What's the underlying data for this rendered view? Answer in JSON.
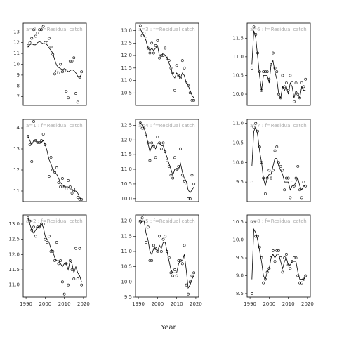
{
  "xlabel": "Year",
  "chart_data": [
    {
      "type": "scatter-line",
      "title": "a=0 : f=Residual catch",
      "x": [
        1991,
        1992,
        1993,
        1994,
        1995,
        1996,
        1997,
        1998,
        1999,
        2000,
        2001,
        2002,
        2003,
        2004,
        2005,
        2006,
        2007,
        2008,
        2009,
        2010,
        2011,
        2012,
        2013,
        2014,
        2015,
        2016,
        2017,
        2018,
        2019
      ],
      "xlim": [
        1988.5,
        2021.5
      ],
      "ylim": [
        6.2,
        13.8
      ],
      "yticks": [
        7,
        8,
        9,
        10,
        11,
        12,
        13
      ],
      "series": [
        {
          "marker": "circle",
          "values": [
            11.7,
            12.0,
            12.4,
            13.2,
            12.6,
            12.9,
            13.2,
            13.2,
            13.5,
            12.0,
            12.0,
            12.4,
            11.6,
            10.9,
            9.1,
            9.4,
            9.2,
            10.0,
            9.3,
            9.4,
            7.5,
            6.9,
            10.3,
            10.3,
            10.6,
            7.3,
            6.5,
            8.8,
            9.3
          ]
        },
        {
          "marker": "line",
          "values": [
            11.6,
            11.8,
            11.9,
            11.8,
            11.8,
            12.0,
            12.1,
            12.0,
            11.9,
            11.9,
            11.8,
            11.5,
            11.3,
            11.0,
            10.4,
            9.9,
            9.7,
            9.6,
            9.5,
            9.6,
            9.5,
            9.3,
            9.4,
            9.5,
            9.4,
            9.2,
            8.9,
            8.8,
            9.1
          ]
        }
      ]
    },
    {
      "type": "scatter-line",
      "title": "a=1 : f=Residual catch",
      "x": [
        1991,
        1992,
        1993,
        1994,
        1995,
        1996,
        1997,
        1998,
        1999,
        2000,
        2001,
        2002,
        2003,
        2004,
        2005,
        2006,
        2007,
        2008,
        2009,
        2010,
        2011,
        2012,
        2013,
        2014,
        2015,
        2016,
        2017,
        2018,
        2019
      ],
      "xlim": [
        1988.5,
        2021.5
      ],
      "ylim": [
        10.5,
        14.4
      ],
      "yticks": [
        11,
        12,
        13,
        14
      ],
      "series": [
        {
          "marker": "circle",
          "values": [
            13.6,
            13.2,
            12.4,
            14.3,
            13.4,
            13.3,
            13.3,
            13.4,
            13.7,
            13.2,
            13.0,
            11.7,
            12.6,
            12.0,
            11.9,
            12.1,
            11.4,
            11.2,
            11.6,
            11.2,
            11.1,
            11.5,
            11.2,
            10.9,
            11.0,
            11.1,
            10.7,
            10.6,
            10.6
          ]
        },
        {
          "marker": "line",
          "values": [
            13.6,
            13.4,
            13.2,
            13.4,
            13.4,
            13.3,
            13.3,
            13.3,
            13.4,
            13.2,
            12.9,
            12.5,
            12.3,
            12.0,
            11.9,
            11.8,
            11.6,
            11.4,
            11.3,
            11.2,
            11.2,
            11.2,
            11.1,
            11.1,
            11.0,
            11.0,
            10.9,
            10.7,
            10.6
          ]
        }
      ]
    },
    {
      "type": "scatter-line",
      "title": "a=2 : f=Residual catch",
      "x": [
        1991,
        1992,
        1993,
        1994,
        1995,
        1996,
        1997,
        1998,
        1999,
        2000,
        2001,
        2002,
        2003,
        2004,
        2005,
        2006,
        2007,
        2008,
        2009,
        2010,
        2011,
        2012,
        2013,
        2014,
        2015,
        2016,
        2017,
        2018,
        2019
      ],
      "xlim": [
        1988.5,
        2021.5
      ],
      "ylim": [
        10.6,
        13.3
      ],
      "yticks": [
        {
          "value": 11,
          "label": "11.0"
        },
        11.5,
        {
          "value": 12,
          "label": "12.0"
        },
        12.5,
        {
          "value": 13,
          "label": "13.0"
        }
      ],
      "xticks": [
        1990,
        2000,
        2010,
        2020
      ],
      "series": [
        {
          "marker": "circle",
          "values": [
            13.2,
            13.1,
            12.8,
            12.9,
            12.6,
            12.9,
            12.9,
            13.0,
            13.0,
            12.5,
            12.4,
            12.6,
            12.1,
            12.1,
            11.8,
            12.4,
            11.7,
            11.8,
            11.1,
            10.7,
            11.7,
            11.0,
            11.8,
            11.5,
            11.2,
            12.2,
            11.2,
            12.2,
            11.0
          ]
        },
        {
          "marker": "line",
          "values": [
            13.2,
            13.0,
            12.8,
            12.7,
            12.8,
            12.9,
            12.9,
            13.0,
            12.9,
            12.6,
            12.5,
            12.4,
            12.2,
            12.1,
            11.9,
            11.8,
            11.8,
            11.7,
            11.6,
            11.7,
            11.7,
            11.5,
            11.8,
            11.7,
            11.4,
            11.6,
            11.4,
            11.3,
            11.1
          ]
        }
      ]
    },
    {
      "type": "scatter-line",
      "title": "a=3 : f=Residual catch",
      "x": [
        1991,
        1992,
        1993,
        1994,
        1995,
        1996,
        1997,
        1998,
        1999,
        2000,
        2001,
        2002,
        2003,
        2004,
        2005,
        2006,
        2007,
        2008,
        2009,
        2010,
        2011,
        2012,
        2013,
        2014,
        2015,
        2016,
        2017,
        2018,
        2019
      ],
      "xlim": [
        1988.5,
        2021.5
      ],
      "ylim": [
        10.0,
        13.3
      ],
      "yticks": [
        10.5,
        {
          "value": 11,
          "label": "11.0"
        },
        11.5,
        {
          "value": 12,
          "label": "12.0"
        },
        12.5,
        {
          "value": 13,
          "label": "13.0"
        }
      ],
      "series": [
        {
          "marker": "circle",
          "values": [
            13.2,
            12.8,
            12.9,
            12.7,
            12.3,
            12.1,
            12.5,
            12.1,
            12.4,
            12.6,
            11.9,
            12.0,
            12.0,
            12.3,
            11.9,
            11.8,
            11.5,
            11.3,
            10.6,
            11.6,
            11.2,
            11.1,
            11.8,
            11.5,
            10.9,
            10.8,
            10.5,
            10.2,
            10.2
          ]
        },
        {
          "marker": "line",
          "values": [
            13.1,
            12.9,
            12.8,
            12.6,
            12.3,
            12.2,
            12.3,
            12.2,
            12.3,
            12.4,
            12.0,
            12.0,
            12.1,
            12.0,
            11.9,
            11.7,
            11.5,
            11.2,
            11.1,
            11.3,
            11.2,
            11.1,
            11.3,
            11.2,
            10.9,
            10.8,
            10.6,
            10.4,
            10.3
          ]
        }
      ]
    },
    {
      "type": "scatter-line",
      "title": "a=4 : f=Residual catch",
      "x": [
        1991,
        1992,
        1993,
        1994,
        1995,
        1996,
        1997,
        1998,
        1999,
        2000,
        2001,
        2002,
        2003,
        2004,
        2005,
        2006,
        2007,
        2008,
        2009,
        2010,
        2011,
        2012,
        2013,
        2014,
        2015,
        2016,
        2017,
        2018,
        2019
      ],
      "xlim": [
        1988.5,
        2021.5
      ],
      "ylim": [
        9.9,
        12.7
      ],
      "yticks": [
        {
          "value": 10,
          "label": "10.0"
        },
        10.5,
        {
          "value": 11,
          "label": "11.0"
        },
        11.5,
        {
          "value": 12,
          "label": "12.0"
        },
        12.5
      ],
      "series": [
        {
          "marker": "circle",
          "values": [
            12.6,
            12.4,
            12.4,
            12.2,
            11.9,
            11.3,
            11.9,
            11.8,
            11.4,
            12.1,
            11.9,
            11.7,
            11.9,
            11.6,
            11.3,
            11.1,
            10.8,
            10.7,
            11.4,
            11.0,
            11.1,
            11.7,
            10.8,
            10.6,
            10.5,
            10.0,
            10.0,
            10.8,
            10.5
          ]
        },
        {
          "marker": "line",
          "values": [
            12.6,
            12.5,
            12.4,
            12.2,
            11.9,
            11.6,
            11.8,
            11.8,
            11.7,
            11.9,
            11.9,
            11.8,
            11.8,
            11.6,
            11.4,
            11.2,
            11.0,
            10.8,
            11.0,
            11.0,
            11.0,
            11.2,
            10.9,
            10.7,
            10.6,
            10.3,
            10.2,
            10.3,
            10.4
          ]
        }
      ]
    },
    {
      "type": "scatter-line",
      "title": "a=5 : f=Residual catch",
      "x": [
        1991,
        1992,
        1993,
        1994,
        1995,
        1996,
        1997,
        1998,
        1999,
        2000,
        2001,
        2002,
        2003,
        2004,
        2005,
        2006,
        2007,
        2008,
        2009,
        2010,
        2011,
        2012,
        2013,
        2014,
        2015,
        2016,
        2017,
        2018,
        2019
      ],
      "xlim": [
        1988.5,
        2021.5
      ],
      "ylim": [
        9.5,
        12.2
      ],
      "yticks": [
        9.5,
        {
          "value": 10,
          "label": "10.0"
        },
        10.5,
        {
          "value": 11,
          "label": "11.0"
        },
        11.5,
        {
          "value": 12,
          "label": "12.0"
        }
      ],
      "xticks": [
        1990,
        2000,
        2010,
        2020
      ],
      "series": [
        {
          "marker": "circle",
          "values": [
            12.0,
            12.1,
            12.2,
            11.3,
            11.8,
            10.7,
            10.7,
            11.2,
            11.1,
            11.0,
            11.5,
            11.0,
            11.4,
            11.5,
            11.0,
            10.8,
            10.3,
            10.2,
            10.4,
            10.2,
            10.7,
            10.7,
            10.6,
            11.2,
            9.9,
            9.6,
            10.0,
            10.2,
            10.3
          ]
        },
        {
          "marker": "line",
          "values": [
            11.9,
            12.0,
            12.0,
            11.6,
            11.4,
            11.0,
            10.9,
            11.1,
            11.1,
            11.0,
            11.2,
            11.1,
            11.3,
            11.3,
            11.0,
            10.7,
            10.4,
            10.3,
            10.3,
            10.3,
            10.6,
            10.7,
            10.7,
            10.9,
            10.4,
            9.8,
            9.9,
            10.1,
            10.2
          ]
        }
      ]
    },
    {
      "type": "scatter-line",
      "title": "a=6 : f=Residual catch",
      "x": [
        1991,
        1992,
        1993,
        1994,
        1995,
        1996,
        1997,
        1998,
        1999,
        2000,
        2001,
        2002,
        2003,
        2004,
        2005,
        2006,
        2007,
        2008,
        2009,
        2010,
        2011,
        2012,
        2013,
        2014,
        2015,
        2016,
        2017,
        2018,
        2019
      ],
      "xlim": [
        1988.5,
        2021.5
      ],
      "ylim": [
        9.7,
        11.9
      ],
      "yticks": [
        {
          "value": 10,
          "label": "10.0"
        },
        10.5,
        {
          "value": 11,
          "label": "11.0"
        },
        11.5
      ],
      "series": [
        {
          "marker": "circle",
          "values": [
            10.7,
            11.8,
            11.6,
            11.1,
            10.6,
            10.1,
            10.6,
            10.6,
            10.6,
            10.4,
            10.8,
            11.1,
            10.7,
            10.6,
            10.0,
            9.9,
            10.5,
            10.2,
            10.3,
            10.1,
            10.5,
            10.3,
            9.8,
            10.3,
            10.0,
            9.9,
            10.3,
            10.2,
            10.4
          ]
        },
        {
          "marker": "line",
          "values": [
            10.8,
            11.7,
            11.5,
            11.0,
            10.5,
            10.1,
            10.5,
            10.5,
            10.5,
            10.3,
            10.8,
            10.9,
            10.6,
            10.4,
            10.0,
            9.9,
            10.2,
            10.1,
            10.2,
            10.0,
            10.3,
            10.2,
            9.9,
            10.1,
            10.0,
            9.9,
            10.2,
            10.1,
            10.1
          ]
        }
      ]
    },
    {
      "type": "scatter-line",
      "title": "a=7 : f=Residual catch",
      "x": [
        1991,
        1992,
        1993,
        1994,
        1995,
        1996,
        1997,
        1998,
        1999,
        2000,
        2001,
        2002,
        2003,
        2004,
        2005,
        2006,
        2007,
        2008,
        2009,
        2010,
        2011,
        2012,
        2013,
        2014,
        2015,
        2016,
        2017,
        2018,
        2019
      ],
      "xlim": [
        1988.5,
        2021.5
      ],
      "ylim": [
        9.0,
        11.1
      ],
      "yticks": [
        9.5,
        {
          "value": 10,
          "label": "10.0"
        },
        10.5,
        {
          "value": 11,
          "label": "11.0"
        }
      ],
      "series": [
        {
          "marker": "circle",
          "values": [
            9.5,
            10.9,
            11.0,
            10.8,
            10.4,
            10.0,
            9.6,
            9.2,
            9.6,
            9.8,
            9.6,
            9.8,
            10.3,
            10.4,
            10.0,
            9.9,
            9.8,
            9.3,
            9.6,
            9.6,
            9.1,
            9.5,
            9.4,
            9.6,
            9.9,
            9.3,
            9.1,
            9.5,
            9.4
          ]
        },
        {
          "marker": "line",
          "values": [
            9.9,
            10.8,
            10.9,
            10.7,
            10.3,
            10.0,
            9.6,
            9.4,
            9.6,
            9.7,
            9.7,
            9.9,
            10.1,
            10.1,
            9.9,
            9.8,
            9.7,
            9.5,
            9.5,
            9.5,
            9.3,
            9.4,
            9.4,
            9.5,
            9.6,
            9.4,
            9.3,
            9.4,
            9.4
          ]
        }
      ]
    },
    {
      "type": "scatter-line",
      "title": "a=8 : f=Residual catch",
      "x": [
        1991,
        1992,
        1993,
        1994,
        1995,
        1996,
        1997,
        1998,
        1999,
        2000,
        2001,
        2002,
        2003,
        2004,
        2005,
        2006,
        2007,
        2008,
        2009,
        2010,
        2011,
        2012,
        2013,
        2014,
        2015,
        2016,
        2017,
        2018,
        2019
      ],
      "xlim": [
        1988.5,
        2021.5
      ],
      "ylim": [
        8.4,
        10.7
      ],
      "yticks": [
        8.5,
        {
          "value": 9,
          "label": "9.0"
        },
        9.5,
        {
          "value": 10,
          "label": "10.0"
        },
        10.5
      ],
      "xticks": [
        1990,
        2000,
        2010,
        2020
      ],
      "series": [
        {
          "marker": "circle",
          "values": [
            8.5,
            10.5,
            10.1,
            10.1,
            9.8,
            9.5,
            8.8,
            8.9,
            9.1,
            9.2,
            9.5,
            9.7,
            9.4,
            9.7,
            9.7,
            9.5,
            9.1,
            9.5,
            9.6,
            9.3,
            9.2,
            9.4,
            9.5,
            9.5,
            9.0,
            8.8,
            8.8,
            8.9,
            9.0
          ]
        },
        {
          "marker": "line",
          "values": [
            8.9,
            10.3,
            10.2,
            10.0,
            9.7,
            9.4,
            9.0,
            8.9,
            9.1,
            9.2,
            9.5,
            9.6,
            9.5,
            9.6,
            9.6,
            9.4,
            9.2,
            9.4,
            9.5,
            9.3,
            9.3,
            9.4,
            9.4,
            9.4,
            9.1,
            8.9,
            8.9,
            8.9,
            9.0
          ]
        }
      ]
    }
  ]
}
